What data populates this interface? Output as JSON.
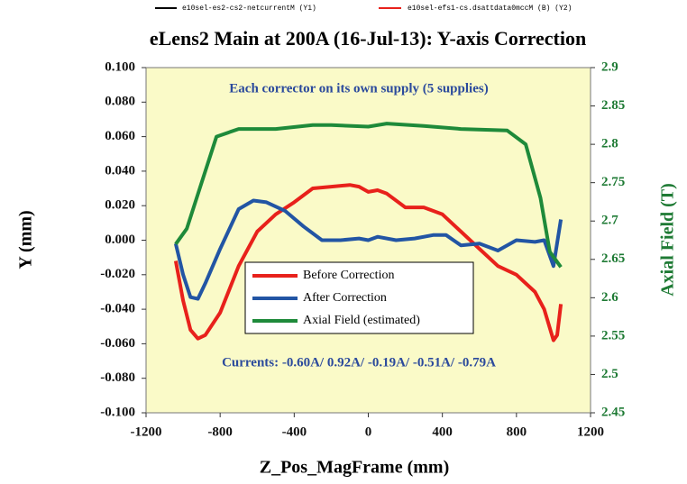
{
  "chart_data": {
    "type": "line",
    "top_legend": [
      "e10sel-es2-cs2-netcurrentM (Y1)",
      "e10sel-efs1-cs.dsattdata0mccM (B) (Y2)"
    ],
    "title": "eLens2 Main at 200A (16-Jul-13): Y-axis Correction",
    "annotations": [
      "Each corrector on its own supply (5 supplies)",
      "Currents: -0.60A/ 0.92A/ -0.19A/ -0.51A/ -0.79A"
    ],
    "xlabel": "Z_Pos_MagFrame (mm)",
    "ylabel": "Y (mm)",
    "y2label": "Axial Field (T)",
    "xlim": [
      -1200,
      1200
    ],
    "xticks": [
      -1200,
      -800,
      -400,
      0,
      400,
      800,
      1200
    ],
    "ylim": [
      -0.1,
      0.1
    ],
    "yticks": [
      {
        "value": -0.1,
        "label": "-0.100"
      },
      {
        "value": -0.08,
        "label": "-0.080"
      },
      {
        "value": -0.06,
        "label": "-0.060"
      },
      {
        "value": -0.04,
        "label": "-0.040"
      },
      {
        "value": -0.02,
        "label": "-0.020"
      },
      {
        "value": 0,
        "label": "0.000"
      },
      {
        "value": 0.02,
        "label": "0.020"
      },
      {
        "value": 0.04,
        "label": "0.040"
      },
      {
        "value": 0.06,
        "label": "0.060"
      },
      {
        "value": 0.08,
        "label": "0.080"
      },
      {
        "value": 0.1,
        "label": "0.100"
      }
    ],
    "y2lim": [
      2.45,
      2.9
    ],
    "y2ticks": [
      2.45,
      2.5,
      2.55,
      2.6,
      2.65,
      2.7,
      2.75,
      2.8,
      2.85,
      2.9
    ],
    "series": [
      {
        "name": "Before Correction",
        "color": "#e8211b",
        "x": [
          -1040,
          -1000,
          -960,
          -920,
          -880,
          -800,
          -700,
          -600,
          -500,
          -400,
          -300,
          -200,
          -100,
          -50,
          0,
          50,
          100,
          200,
          300,
          400,
          500,
          600,
          700,
          800,
          900,
          950,
          1000,
          1020,
          1040
        ],
        "values": [
          -0.012,
          -0.035,
          -0.052,
          -0.057,
          -0.055,
          -0.042,
          -0.015,
          0.005,
          0.015,
          0.022,
          0.03,
          0.031,
          0.032,
          0.031,
          0.028,
          0.029,
          0.027,
          0.019,
          0.019,
          0.015,
          0.005,
          -0.005,
          -0.015,
          -0.02,
          -0.03,
          -0.04,
          -0.058,
          -0.055,
          -0.037
        ]
      },
      {
        "name": "After Correction",
        "color": "#2255a4",
        "x": [
          -1040,
          -1000,
          -960,
          -920,
          -880,
          -800,
          -700,
          -620,
          -550,
          -450,
          -350,
          -250,
          -150,
          -50,
          0,
          50,
          150,
          250,
          350,
          420,
          500,
          600,
          700,
          800,
          900,
          950,
          1000,
          1040
        ],
        "values": [
          -0.002,
          -0.02,
          -0.033,
          -0.034,
          -0.025,
          -0.005,
          0.018,
          0.023,
          0.022,
          0.017,
          0.008,
          0.0,
          0.0,
          0.001,
          0.0,
          0.002,
          0.0,
          0.001,
          0.003,
          0.003,
          -0.003,
          -0.002,
          -0.006,
          0.0,
          -0.001,
          0.0,
          -0.015,
          0.012
        ]
      },
      {
        "name": "Axial Field (estimated)",
        "color": "#1e8a3a",
        "axis": "y2",
        "x": [
          -1040,
          -980,
          -900,
          -820,
          -700,
          -500,
          -300,
          -200,
          0,
          100,
          300,
          500,
          750,
          850,
          930,
          980,
          1040
        ],
        "values": [
          2.67,
          2.69,
          2.75,
          2.81,
          2.82,
          2.82,
          2.825,
          2.825,
          2.823,
          2.827,
          2.824,
          2.82,
          2.818,
          2.8,
          2.73,
          2.66,
          2.64
        ]
      }
    ]
  }
}
